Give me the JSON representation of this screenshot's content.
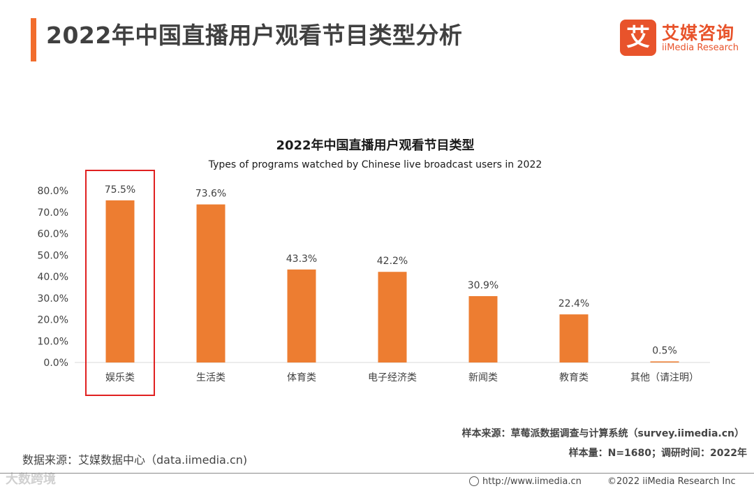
{
  "header": {
    "title": "2022年中国直播用户观看节目类型分析",
    "accent_color": "#f26d2d"
  },
  "logo": {
    "mark": "艾",
    "name_cn": "艾媒咨询",
    "name_en": "iiMedia Research",
    "color": "#e8532b"
  },
  "chart_data": {
    "type": "bar",
    "title": "2022年中国直播用户观看节目类型",
    "subtitle": "Types of programs watched by Chinese live broadcast users in 2022",
    "categories": [
      "娱乐类",
      "生活类",
      "体育类",
      "电子经济类",
      "新闻类",
      "教育类",
      "其他（请注明）"
    ],
    "values": [
      75.5,
      73.6,
      43.3,
      42.2,
      30.9,
      22.4,
      0.5
    ],
    "value_labels": [
      "75.5%",
      "73.6%",
      "43.3%",
      "42.2%",
      "30.9%",
      "22.4%",
      "0.5%"
    ],
    "y_ticks": [
      0,
      10,
      20,
      30,
      40,
      50,
      60,
      70,
      80
    ],
    "y_tick_labels": [
      "0.0%",
      "10.0%",
      "20.0%",
      "30.0%",
      "40.0%",
      "50.0%",
      "60.0%",
      "70.0%",
      "80.0%"
    ],
    "ylim": [
      0,
      80
    ],
    "xlabel": "",
    "ylabel": "",
    "bar_color": "#ed7d31",
    "highlighted_category": "娱乐类",
    "highlight_color": "#e02020",
    "grid": false
  },
  "notes": {
    "data_source": "数据来源：艾媒数据中心（data.iimedia.cn)",
    "sample_source": "样本来源：草莓派数据调查与计算系统（survey.iimedia.cn）",
    "sample_size": "样本量：N=1680；调研时间：2022年"
  },
  "footer": {
    "url": "http://www.iimedia.cn",
    "copyright": "©2022  iiMedia Research  Inc"
  },
  "watermark": "大数跨境"
}
